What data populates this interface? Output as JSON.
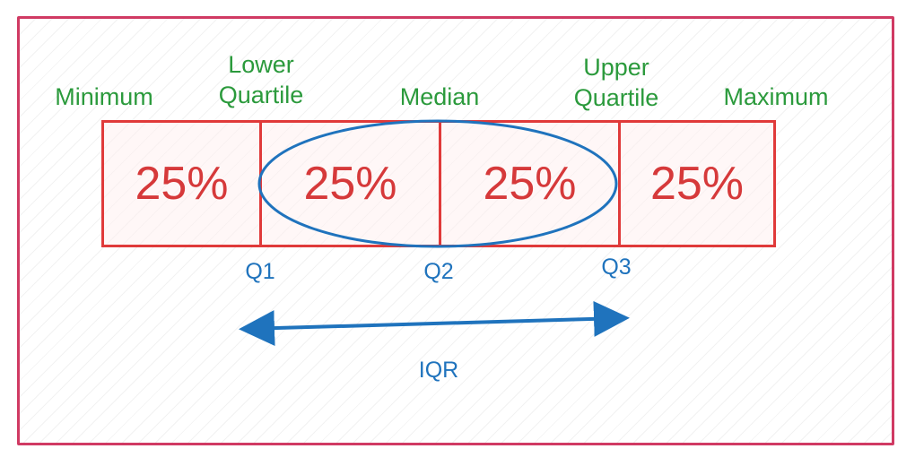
{
  "labels": {
    "minimum": "Minimum",
    "lower_quartile_line1": "Lower",
    "lower_quartile_line2": "Quartile",
    "median": "Median",
    "upper_quartile_line1": "Upper",
    "upper_quartile_line2": "Quartile",
    "maximum": "Maximum"
  },
  "segments": [
    "25%",
    "25%",
    "25%",
    "25%"
  ],
  "markers": {
    "q1": "Q1",
    "q2": "Q2",
    "q3": "Q3"
  },
  "range_label": "IQR",
  "colors": {
    "frame": "#d03a63",
    "box": "#e03a3a",
    "segment_text": "#d6393a",
    "heading_text": "#2b9a3c",
    "annotation": "#1f73bd"
  }
}
